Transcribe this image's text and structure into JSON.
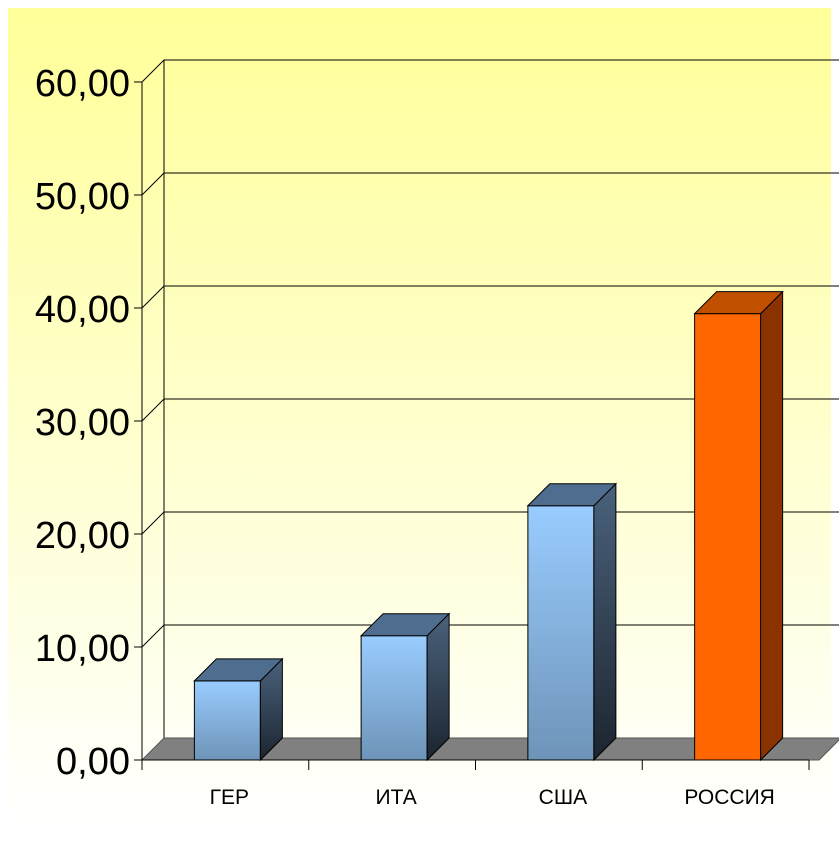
{
  "chart_data": {
    "type": "bar",
    "categories": [
      "ГЕР",
      "ИТА",
      "США",
      "РОССИЯ"
    ],
    "values": [
      7,
      11,
      22.5,
      39.5
    ],
    "ylim": [
      0,
      60
    ],
    "yticks": [
      "0,00",
      "10,00",
      "20,00",
      "30,00",
      "40,00",
      "50,00",
      "60,00"
    ],
    "grid": true,
    "legend": "none",
    "colors": {
      "background_top": "#ffff99",
      "background_bottom": "#ffffff",
      "bar_front_top": "#99ccff",
      "bar_front_bottom": "#6e94b8",
      "bar_top": "#4f6e8f",
      "bar_side": "#2a3a4e",
      "highlight_front": "#ff6600",
      "highlight_top": "#c04f00",
      "highlight_side": "#8a3300",
      "floor": "#808080",
      "grid": "#000000"
    }
  }
}
